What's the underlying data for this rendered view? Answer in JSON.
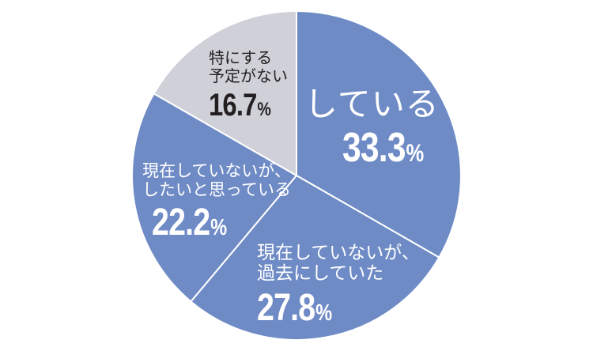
{
  "chart_data": {
    "type": "pie",
    "title": "",
    "start_angle_deg": 0,
    "direction": "clockwise",
    "categories": [
      "している",
      "現在していないが、過去にしていた",
      "現在していないが、したいと思っている",
      "特にする予定がない"
    ],
    "values": [
      33.3,
      27.8,
      22.2,
      16.7
    ],
    "unit": "%",
    "colors": [
      "#6f8bc6",
      "#6f8bc6",
      "#6f8bc6",
      "#cfd0d8"
    ],
    "slice_border_color": "#ffffff",
    "legend": "none (labels inside slices)"
  },
  "labels": [
    {
      "lines": [
        "している"
      ],
      "value": "33.3",
      "unit": "%"
    },
    {
      "lines": [
        "現在していないが、",
        "過去にしていた"
      ],
      "value": "27.8",
      "unit": "%"
    },
    {
      "lines": [
        "現在していないが、",
        "したいと思っている"
      ],
      "value": "22.2",
      "unit": "%"
    },
    {
      "lines": [
        "特にする",
        "予定がない"
      ],
      "value": "16.7",
      "unit": "%"
    }
  ]
}
